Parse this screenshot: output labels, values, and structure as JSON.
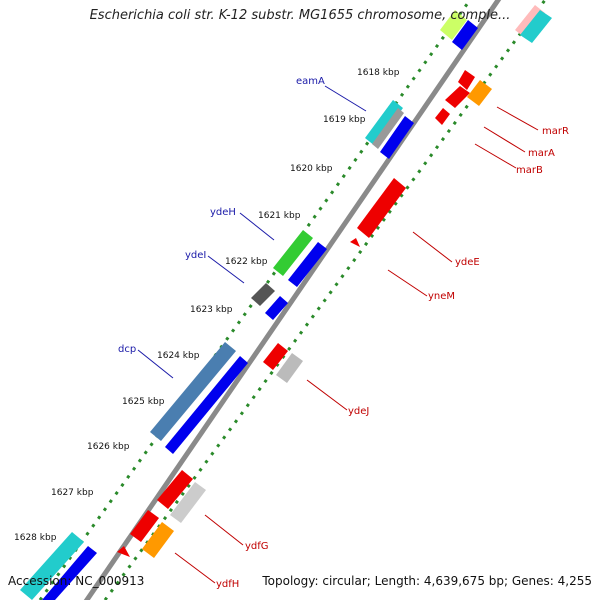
{
  "title": "Escherichia coli str. K-12 substr. MG1655 chromosome, comple...",
  "accession": "Accession: NC_000913",
  "summary": "Topology: circular; Length: 4,639,675 bp; Genes: 4,255",
  "ticks": [
    "1618 kbp",
    "1619 kbp",
    "1620 kbp",
    "1621 kbp",
    "1622 kbp",
    "1623 kbp",
    "1624 kbp",
    "1625 kbp",
    "1626 kbp",
    "1627 kbp",
    "1628 kbp"
  ],
  "gene_labels_forward": [
    "eamA",
    "ydeH",
    "ydeI",
    "dcp"
  ],
  "gene_labels_reverse": [
    "marR",
    "marA",
    "marB",
    "ydeE",
    "yneM",
    "ydeJ",
    "ydfG",
    "ydfH"
  ],
  "colors": {
    "backbone": "#888888",
    "tick_dots": "#2a8a2a",
    "label_forward": "#1a1aa8",
    "label_reverse": "#c00000",
    "blue": "#0000ee",
    "red": "#ee0000",
    "green": "#33cc33",
    "cyan": "#22cccc",
    "steelblue": "#4a7eb0",
    "gray": "#bbbbbb",
    "darkgray": "#555555",
    "orange": "#ff9900",
    "lime": "#ccff66",
    "pink": "#ffbbbb"
  }
}
